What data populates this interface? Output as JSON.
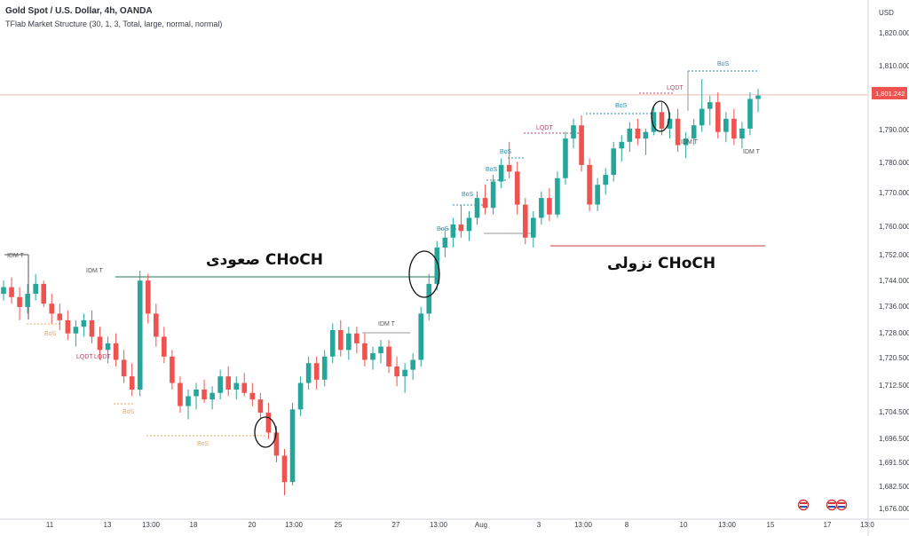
{
  "header": {
    "title": "Gold Spot / U.S. Dollar, 4h, OANDA",
    "indicator": "TFlab Market Structure (30, 1, 3, Total, large, normal, normal)"
  },
  "annotations": {
    "choch_bullish": "صعودی CHoCH",
    "choch_bearish": "نزولی CHoCH"
  },
  "price_tag": "1,801.242",
  "colors": {
    "up": "#26a69a",
    "down": "#ef5350",
    "price_line": "#f5b8b6",
    "bos_down": "#f7a35c",
    "bos_up": "#2f8fb3",
    "lqdt": "#b04a6a"
  },
  "chart_data": {
    "type": "candlestick",
    "y_axis": {
      "unit": "USD",
      "ticks": [
        "1,820.000",
        "1,810.000",
        "1,801.242",
        "1,790.000",
        "1,780.000",
        "1,770.000",
        "1,760.000",
        "1,752.000",
        "1,744.000",
        "1,736.000",
        "1,728.000",
        "1,720.500",
        "1,712.500",
        "1,704.500",
        "1,696.500",
        "1,691.500",
        "1,682.500",
        "1,676.000"
      ]
    },
    "x_axis": {
      "ticks": [
        "11",
        "13",
        "13:00",
        "18",
        "20",
        "13:00",
        "25",
        "27",
        "13:00",
        "Aug",
        "3",
        "13:00",
        "8",
        "10",
        "13:00",
        "15",
        "17",
        "13:0"
      ]
    },
    "last_price": 1801.242,
    "candles": [
      [
        1741,
        1745,
        1739,
        1743
      ],
      [
        1743,
        1746,
        1738,
        1740
      ],
      [
        1740,
        1743,
        1733,
        1737
      ],
      [
        1737,
        1744,
        1735,
        1741
      ],
      [
        1741,
        1747,
        1739,
        1744
      ],
      [
        1744,
        1745,
        1737,
        1738
      ],
      [
        1738,
        1741,
        1732,
        1735
      ],
      [
        1735,
        1738,
        1730,
        1733
      ],
      [
        1733,
        1736,
        1727,
        1729
      ],
      [
        1729,
        1733,
        1725,
        1731
      ],
      [
        1731,
        1735,
        1728,
        1733
      ],
      [
        1733,
        1736,
        1726,
        1728
      ],
      [
        1728,
        1731,
        1721,
        1724
      ],
      [
        1724,
        1728,
        1720,
        1726
      ],
      [
        1726,
        1729,
        1719,
        1721
      ],
      [
        1721,
        1724,
        1714,
        1716
      ],
      [
        1716,
        1720,
        1710,
        1712
      ],
      [
        1712,
        1748,
        1710,
        1745
      ],
      [
        1745,
        1747,
        1732,
        1735
      ],
      [
        1735,
        1738,
        1725,
        1728
      ],
      [
        1728,
        1731,
        1720,
        1722
      ],
      [
        1722,
        1724,
        1712,
        1714
      ],
      [
        1714,
        1716,
        1705,
        1707
      ],
      [
        1707,
        1712,
        1703,
        1710
      ],
      [
        1710,
        1714,
        1706,
        1712
      ],
      [
        1712,
        1715,
        1708,
        1709
      ],
      [
        1709,
        1713,
        1706,
        1711
      ],
      [
        1711,
        1718,
        1709,
        1716
      ],
      [
        1716,
        1719,
        1710,
        1712
      ],
      [
        1712,
        1716,
        1709,
        1714
      ],
      [
        1714,
        1717,
        1710,
        1711
      ],
      [
        1711,
        1714,
        1707,
        1709
      ],
      [
        1709,
        1711,
        1703,
        1705
      ],
      [
        1705,
        1708,
        1697,
        1699
      ],
      [
        1699,
        1701,
        1690,
        1692
      ],
      [
        1692,
        1694,
        1680,
        1684
      ],
      [
        1684,
        1708,
        1683,
        1706
      ],
      [
        1706,
        1716,
        1704,
        1714
      ],
      [
        1714,
        1722,
        1712,
        1720
      ],
      [
        1720,
        1722,
        1712,
        1715
      ],
      [
        1715,
        1724,
        1713,
        1722
      ],
      [
        1722,
        1732,
        1720,
        1730
      ],
      [
        1730,
        1733,
        1722,
        1724
      ],
      [
        1724,
        1731,
        1721,
        1729
      ],
      [
        1729,
        1731,
        1723,
        1726
      ],
      [
        1726,
        1729,
        1719,
        1721
      ],
      [
        1721,
        1725,
        1718,
        1723
      ],
      [
        1723,
        1727,
        1720,
        1725
      ],
      [
        1725,
        1727,
        1717,
        1719
      ],
      [
        1719,
        1722,
        1713,
        1716
      ],
      [
        1716,
        1720,
        1711,
        1718
      ],
      [
        1718,
        1723,
        1715,
        1721
      ],
      [
        1721,
        1737,
        1719,
        1735
      ],
      [
        1735,
        1747,
        1733,
        1744
      ],
      [
        1744,
        1757,
        1742,
        1755
      ],
      [
        1755,
        1760,
        1752,
        1758
      ],
      [
        1758,
        1764,
        1755,
        1762
      ],
      [
        1762,
        1768,
        1758,
        1760
      ],
      [
        1760,
        1766,
        1757,
        1764
      ],
      [
        1764,
        1772,
        1762,
        1770
      ],
      [
        1770,
        1774,
        1765,
        1767
      ],
      [
        1767,
        1777,
        1765,
        1775
      ],
      [
        1775,
        1782,
        1773,
        1780
      ],
      [
        1780,
        1787,
        1776,
        1778
      ],
      [
        1778,
        1781,
        1765,
        1768
      ],
      [
        1768,
        1770,
        1756,
        1758
      ],
      [
        1758,
        1766,
        1755,
        1764
      ],
      [
        1764,
        1772,
        1762,
        1770
      ],
      [
        1770,
        1773,
        1763,
        1765
      ],
      [
        1765,
        1778,
        1764,
        1776
      ],
      [
        1776,
        1790,
        1774,
        1788
      ],
      [
        1788,
        1794,
        1785,
        1792
      ],
      [
        1792,
        1795,
        1778,
        1780
      ],
      [
        1780,
        1782,
        1766,
        1768
      ],
      [
        1768,
        1776,
        1766,
        1774
      ],
      [
        1774,
        1779,
        1771,
        1777
      ],
      [
        1777,
        1787,
        1775,
        1785
      ],
      [
        1785,
        1789,
        1781,
        1787
      ],
      [
        1787,
        1793,
        1784,
        1791
      ],
      [
        1791,
        1794,
        1786,
        1788
      ],
      [
        1788,
        1791,
        1783,
        1790
      ],
      [
        1790,
        1798,
        1789,
        1796
      ],
      [
        1796,
        1799,
        1789,
        1791
      ],
      [
        1791,
        1796,
        1788,
        1794
      ],
      [
        1794,
        1797,
        1784,
        1786
      ],
      [
        1786,
        1790,
        1782,
        1788
      ],
      [
        1788,
        1794,
        1786,
        1792
      ],
      [
        1792,
        1806,
        1790,
        1797
      ],
      [
        1797,
        1801,
        1792,
        1799
      ],
      [
        1799,
        1802,
        1788,
        1790
      ],
      [
        1790,
        1796,
        1787,
        1794
      ],
      [
        1794,
        1797,
        1786,
        1788
      ],
      [
        1788,
        1793,
        1785,
        1791
      ],
      [
        1791,
        1802,
        1789,
        1800
      ],
      [
        1800,
        1803,
        1796,
        1801
      ]
    ],
    "labels": [
      {
        "text": "IDM T",
        "color": "#555555"
      },
      {
        "text": "IDM T",
        "color": "#555555"
      },
      {
        "text": "BoS",
        "color": "#f7a35c"
      },
      {
        "text": "LQDT",
        "color": "#b04a6a"
      },
      {
        "text": "LQDT",
        "color": "#b04a6a"
      },
      {
        "text": "BoS",
        "color": "#f7a35c"
      },
      {
        "text": "BoS",
        "color": "#f7a35c"
      },
      {
        "text": "IDM T",
        "color": "#555555"
      },
      {
        "text": "BoS",
        "color": "#2f8fb3"
      },
      {
        "text": "BoS",
        "color": "#2f8fb3"
      },
      {
        "text": "BoS",
        "color": "#2f8fb3"
      },
      {
        "text": "BoS",
        "color": "#2f8fb3"
      },
      {
        "text": "LQDT",
        "color": "#b04a6a"
      },
      {
        "text": "BoS",
        "color": "#2f8fb3"
      },
      {
        "text": "LQDT",
        "color": "#b04a6a"
      },
      {
        "text": "BoS",
        "color": "#2f8fb3"
      },
      {
        "text": "IDM T",
        "color": "#555555"
      },
      {
        "text": "IDM T",
        "color": "#555555"
      }
    ]
  }
}
